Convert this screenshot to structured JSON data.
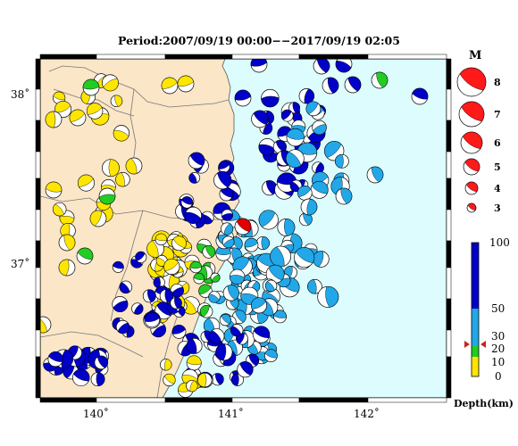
{
  "title": "Period:2007/09/19 00:00−−2017/09/19 02:05",
  "map": {
    "lon_range": [
      139.6,
      142.6
    ],
    "lat_range": [
      36.25,
      38.2
    ],
    "lon_ticks": [
      {
        "v": 140,
        "label": "140˚"
      },
      {
        "v": 141,
        "label": "141˚"
      },
      {
        "v": 142,
        "label": "142˚"
      }
    ],
    "lat_ticks": [
      {
        "v": 38,
        "label": "38˚"
      },
      {
        "v": 37,
        "label": "37˚"
      }
    ],
    "land_color": "#fbe6c8",
    "sea_color": "#dcfcfe"
  },
  "magnitude_legend": {
    "title": "M",
    "items": [
      {
        "m": "8",
        "label": "8"
      },
      {
        "m": "7",
        "label": "7"
      },
      {
        "m": "6",
        "label": "6"
      },
      {
        "m": "5",
        "label": "5"
      },
      {
        "m": "4",
        "label": "4"
      },
      {
        "m": "3",
        "label": "3"
      }
    ],
    "color": "#ff1a1a"
  },
  "depth_legend": {
    "title": "Depth(km)",
    "ticks": [
      "100",
      "50",
      "30",
      "20",
      "10",
      "0"
    ],
    "colors": {
      "shallow": "#ffe600",
      "mid_shallow": "#22cc22",
      "mid": "#22a8e8",
      "deep": "#0000c8"
    },
    "marker_color": "#cc2222"
  },
  "highlight_event": {
    "lon": 141.1,
    "lat": 37.22,
    "color": "#e00000"
  },
  "event_colors": {
    "yellow": "#ffe600",
    "green": "#22cc22",
    "cyan": "#22a8e8",
    "blue": "#0000c8"
  }
}
